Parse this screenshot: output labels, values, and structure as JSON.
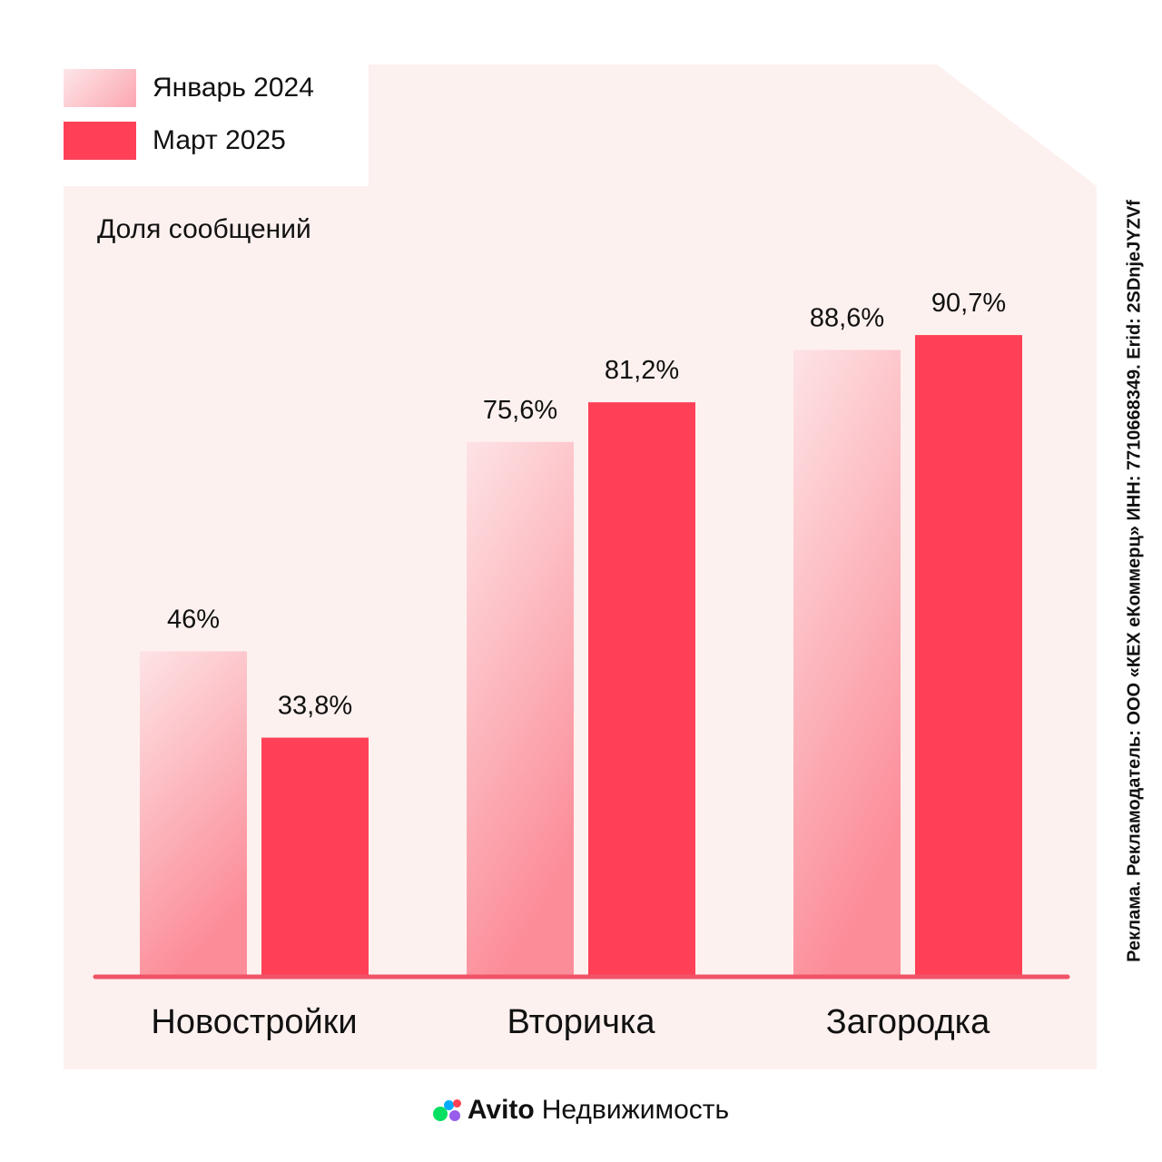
{
  "legend": {
    "items": [
      {
        "label": "Январь 2024",
        "color": "#fca6b1"
      },
      {
        "label": "Март 2025",
        "color": "#ff4057"
      }
    ]
  },
  "subtitle": "Доля сообщений",
  "side_note": "Реклама. Рекламодатель: ООО «КЕХ еКоммерц» ИНН: 7710668349. Erid: 2SDnjeJYZVf",
  "footer": {
    "brand": "Avito",
    "product": "Недвижимость"
  },
  "chart_data": {
    "type": "bar",
    "categories": [
      "Новостройки",
      "Вторичка",
      "Загородка"
    ],
    "series": [
      {
        "name": "Январь 2024",
        "values": [
          46,
          75.6,
          88.6
        ],
        "labels": [
          "46%",
          "75,6%",
          "88,6%"
        ],
        "color": "#fca6b1",
        "fill": "gradient"
      },
      {
        "name": "Март 2025",
        "values": [
          33.8,
          81.2,
          90.7
        ],
        "labels": [
          "33,8%",
          "81,2%",
          "90,7%"
        ],
        "color": "#ff4057",
        "fill": "solid"
      }
    ],
    "title": "Доля сообщений",
    "ylim": [
      0,
      100
    ],
    "grid": false,
    "legend": "top-left",
    "baseline_color": "#f05466",
    "panel_color": "#fdf1ef"
  }
}
